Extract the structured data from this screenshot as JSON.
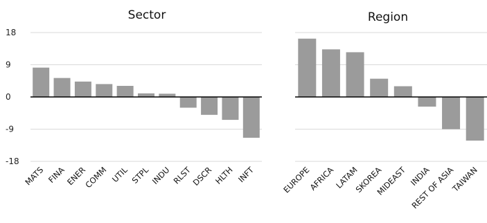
{
  "colors": {
    "bar": "#9b9b9b",
    "grid": "#d9d9d9",
    "axis": "#000000",
    "text": "#111111"
  },
  "chart_data": [
    {
      "type": "bar",
      "title": "Sector",
      "categories": [
        "MATS",
        "FINA",
        "ENER",
        "COMM",
        "UTIL",
        "STPL",
        "INDU",
        "RLST",
        "DSCR",
        "HLTH",
        "INFT"
      ],
      "values": [
        8.2,
        5.3,
        4.3,
        3.6,
        3.1,
        1.0,
        0.9,
        -3.0,
        -5.0,
        -6.4,
        -11.4
      ],
      "yticks": [
        -18,
        -9,
        0,
        9,
        18
      ],
      "ylim": [
        -18,
        18
      ],
      "grid": true,
      "legend": "none"
    },
    {
      "type": "bar",
      "title": "Region",
      "categories": [
        "EUROPE",
        "AFRICA",
        "LATAM",
        "SKOREA",
        "MIDEAST",
        "INDIA",
        "REST OF ASIA",
        "TAIWAN"
      ],
      "values": [
        16.3,
        13.3,
        12.5,
        5.1,
        3.0,
        -2.7,
        -9.0,
        -12.2
      ],
      "yticks": [
        -18,
        -9,
        0,
        9,
        18
      ],
      "ylim": [
        -18,
        18
      ],
      "grid": true,
      "legend": "none"
    }
  ]
}
